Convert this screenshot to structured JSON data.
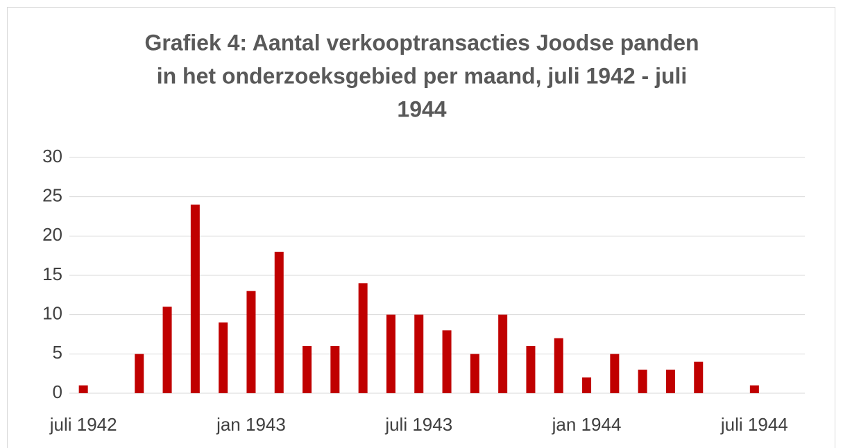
{
  "chart_data": {
    "type": "bar",
    "title": [
      "Grafiek 4: Aantal verkooptransacties Joodse panden",
      "in het onderzoeksgebied per maand, juli 1942 - juli",
      "1944"
    ],
    "categories": [
      "juli 1942",
      null,
      null,
      null,
      null,
      null,
      "jan 1943",
      null,
      null,
      null,
      null,
      null,
      "juli 1943",
      null,
      null,
      null,
      null,
      null,
      "jan 1944",
      null,
      null,
      null,
      null,
      null,
      "juli 1944"
    ],
    "values": [
      1,
      0,
      5,
      11,
      24,
      9,
      13,
      18,
      6,
      6,
      14,
      10,
      10,
      8,
      5,
      10,
      6,
      7,
      2,
      5,
      3,
      3,
      4,
      0,
      1
    ],
    "color": "#c00000",
    "ylim": [
      0,
      30
    ],
    "yticks": [
      0,
      5,
      10,
      15,
      20,
      25,
      30
    ],
    "grid": true
  }
}
